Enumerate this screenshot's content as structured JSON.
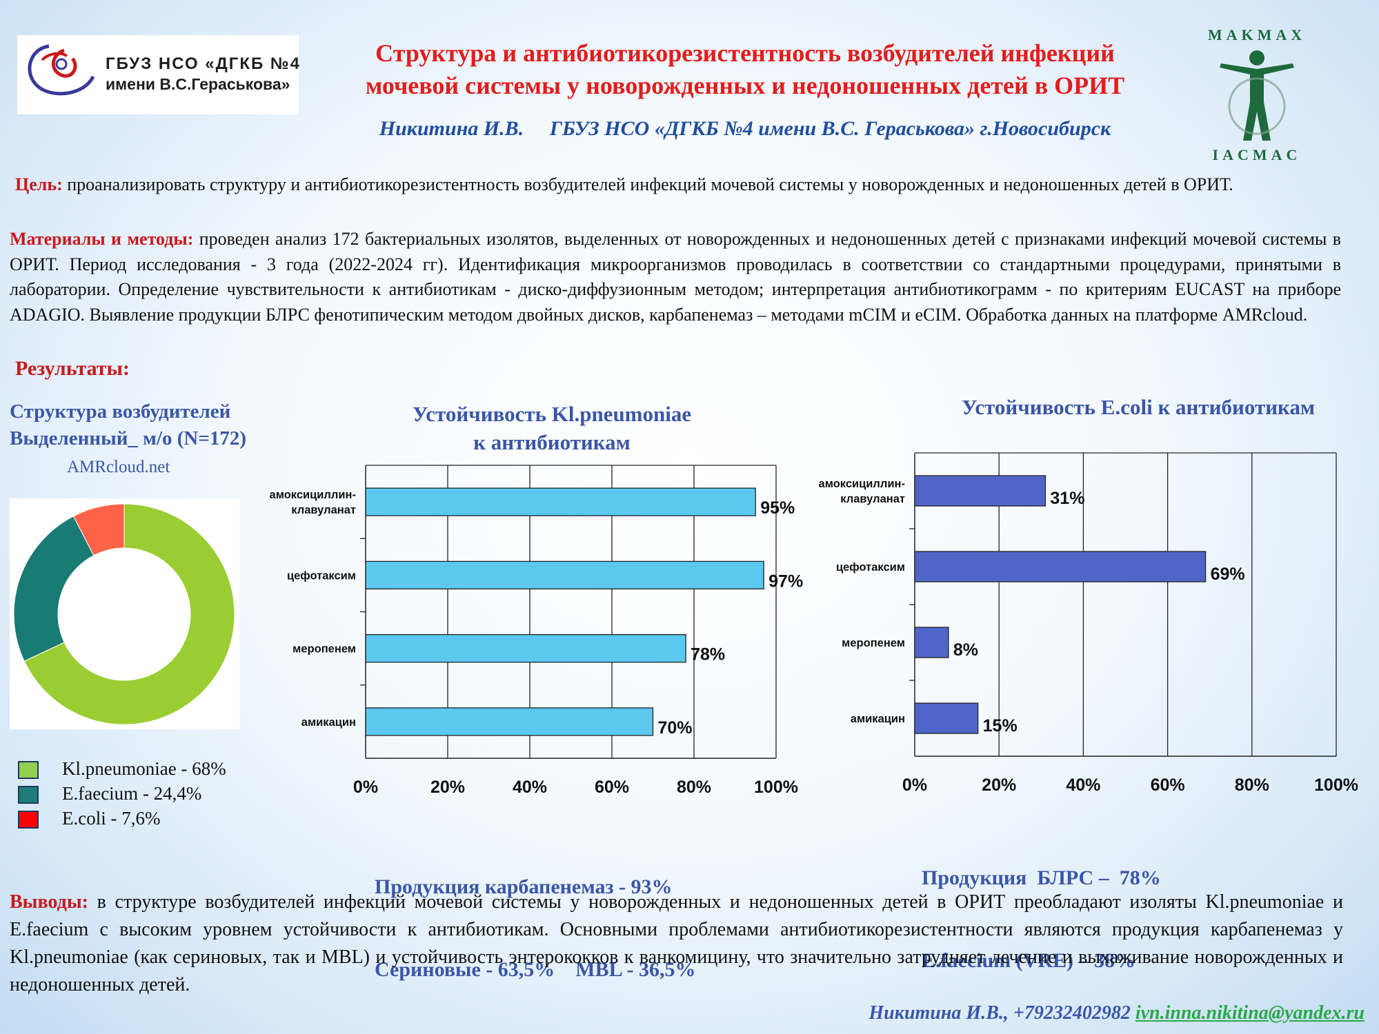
{
  "header": {
    "org_logo": {
      "line1": "ГБУЗ НСО «ДГКБ №4",
      "line2": "имени В.С.Гераськова»"
    },
    "title_line1": "Структура и антибиотикорезистентность возбудителей инфекций",
    "title_line2": "мочевой системы у новорожденных и недоношенных детей в ОРИТ",
    "authors": "Никитина И.В.     ГБУЗ НСО «ДГКБ №4 имени В.С. Гераськова» г.Новосибирск",
    "makmax_logo": {
      "top": "MAKMAX",
      "bottom": "IACMAC"
    }
  },
  "goal": {
    "label": "Цель:",
    "text": " проанализировать структуру и антибиотикорезистентность возбудителей инфекций мочевой системы у новорожденных и недоношенных детей в ОРИТ."
  },
  "methods": {
    "label": "Материалы и методы:",
    "text": " проведен анализ 172 бактериальных изолятов, выделенных от новорожденных и недоношенных детей с признаками инфекций мочевой системы в ОРИТ. Период исследования - 3 года (2022-2024 гг). Идентификация микроорганизмов проводилась в соответствии со стандартными процедурами, принятыми в лаборатории. Определение чувствительности к антибиотикам - диско-диффузионным методом; интерпретация антибиотикограмм - по критериям EUCAST на приборе ADAGIO. Выявление продукции БЛРС фенотипическим методом двойных дисков, карбапенемаз – методами  mCIM и eCIM. Обработка данных на  платформе AMRcloud."
  },
  "results": {
    "heading": "Результаты:",
    "structure_title_line1": "Структура возбудителей",
    "structure_title_line2": "Выделенный_ м/о (N=172)",
    "source": "AMRcloud.net",
    "legend": [
      {
        "label": "Kl.pneumoniae - 68%",
        "color": "#92d050"
      },
      {
        "label": "E.faecium  - 24,4%",
        "color": "#1f7d7a"
      },
      {
        "label": "E.coli  - 7,6%",
        "color": "#ff0000"
      }
    ],
    "note_kleb_line1": "Продукция карбапенемаз - 93%",
    "note_kleb_line2": "Сериновые - 63,5%    MBL - 36,5%",
    "note_ecoli_line1": "Продукция  БЛРС –  78%",
    "note_ecoli_line2": "E.faecium (VRE) – 38%"
  },
  "chart_data": [
    {
      "type": "pie",
      "variant": "donut",
      "categories": [
        "Kl.pneumoniae",
        "E.faecium",
        "E.coli"
      ],
      "values": [
        68,
        24.4,
        7.6
      ],
      "colors": [
        "#9acd32",
        "#1a7a74",
        "#ff6347"
      ]
    },
    {
      "type": "bar",
      "orientation": "horizontal",
      "title_line1": "Устойчивость Kl.pneumoniae",
      "title_line2": "к антибиотикам",
      "categories": [
        "амоксициллин-клавуланат",
        "цефотаксим",
        "меропенем",
        "амикацин"
      ],
      "category_lines": [
        [
          "амоксициллин-",
          "клавуланат"
        ],
        [
          "цефотаксим"
        ],
        [
          "меропенем"
        ],
        [
          "амикацин"
        ]
      ],
      "values": [
        95,
        97,
        78,
        70
      ],
      "value_labels": [
        "95%",
        "97%",
        "78%",
        "70%"
      ],
      "xlim": [
        0,
        100
      ],
      "ticks": [
        "0%",
        "20%",
        "40%",
        "60%",
        "80%",
        "100%"
      ],
      "grid": true,
      "color": "#5bc8f0"
    },
    {
      "type": "bar",
      "orientation": "horizontal",
      "title": "Устойчивость E.coli к антибиотикам",
      "categories": [
        "амоксициллин-клавуланат",
        "цефотаксим",
        "меропенем",
        "амикацин"
      ],
      "category_lines": [
        [
          "амоксициллин-",
          "клавуланат"
        ],
        [
          "цефотаксим"
        ],
        [
          "меропенем"
        ],
        [
          "амикацин"
        ]
      ],
      "values": [
        31,
        69,
        8,
        15
      ],
      "value_labels": [
        "31%",
        "69%",
        "8%",
        "15%"
      ],
      "xlim": [
        0,
        100
      ],
      "ticks": [
        "0%",
        "20%",
        "40%",
        "60%",
        "80%",
        "100%"
      ],
      "grid": true,
      "color": "#4f66c8"
    }
  ],
  "conclusions": {
    "label": "Выводы:",
    "text": " в структуре возбудителей инфекций мочевой системы у новорожденных и недоношенных детей в ОРИТ преобладают изоляты Kl.pneumoniae и E.faecium с высоким уровнем устойчивости к антибиотикам. Основными проблемами антибиотикорезистентности являются продукция карбапенемаз у Kl.pneumoniae (как сериновых, так и MBL) и устойчивость энтерококков к ванкомицину, что значительно затрудняет лечение и выхаживание новорожденных и недоношенных детей."
  },
  "contact": {
    "text": "Никитина И.В., +79232402982  ",
    "email": "ivn.inna.nikitina@yandex.ru"
  }
}
